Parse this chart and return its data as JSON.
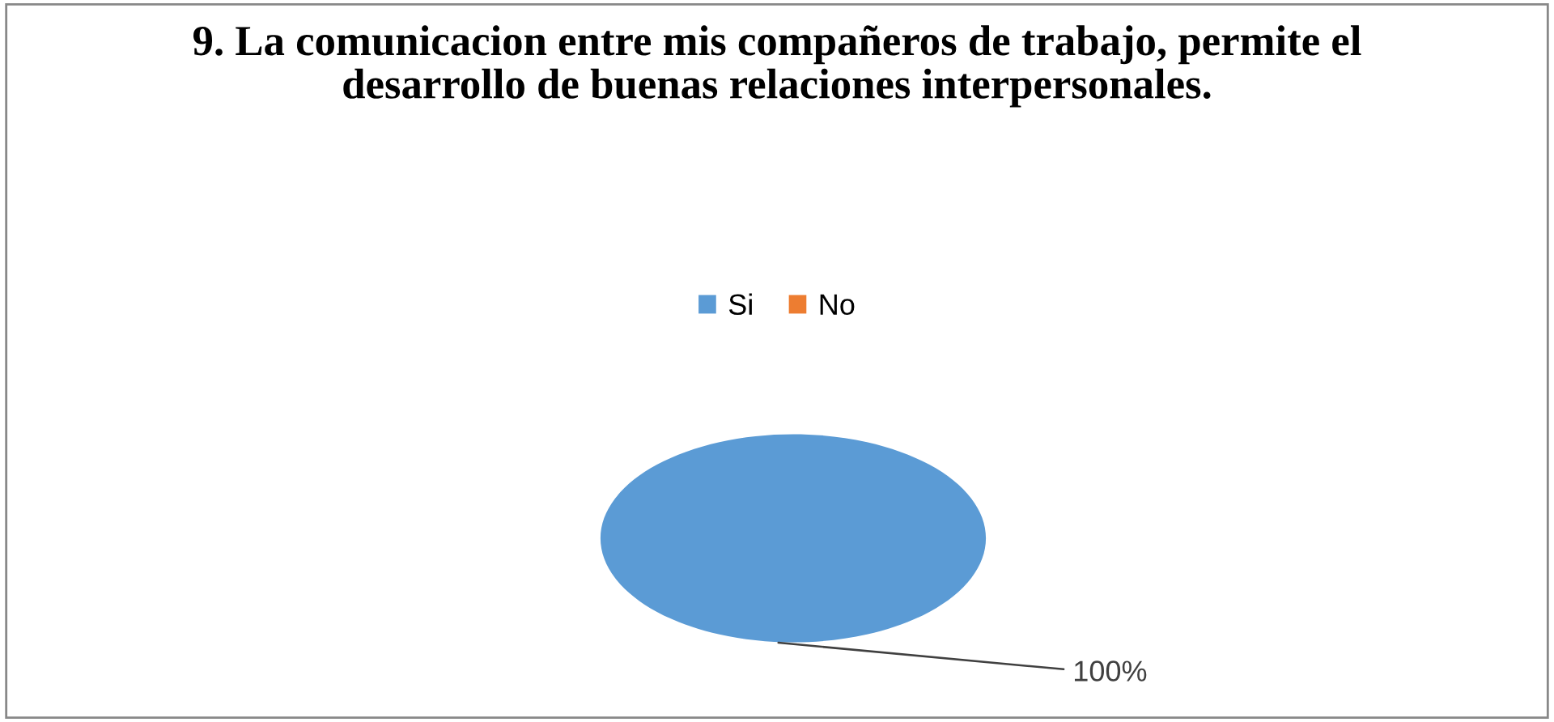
{
  "chart_data": {
    "type": "pie",
    "title": "9. La comunicacion entre mis compañeros de trabajo, permite el desarrollo de buenas relaciones interpersonales.",
    "categories": [
      "Si",
      "No"
    ],
    "values": [
      100,
      0
    ],
    "colors": [
      "#5b9bd5",
      "#ed7d31"
    ],
    "value_labels": [
      "100%",
      null
    ],
    "legend": "top"
  }
}
